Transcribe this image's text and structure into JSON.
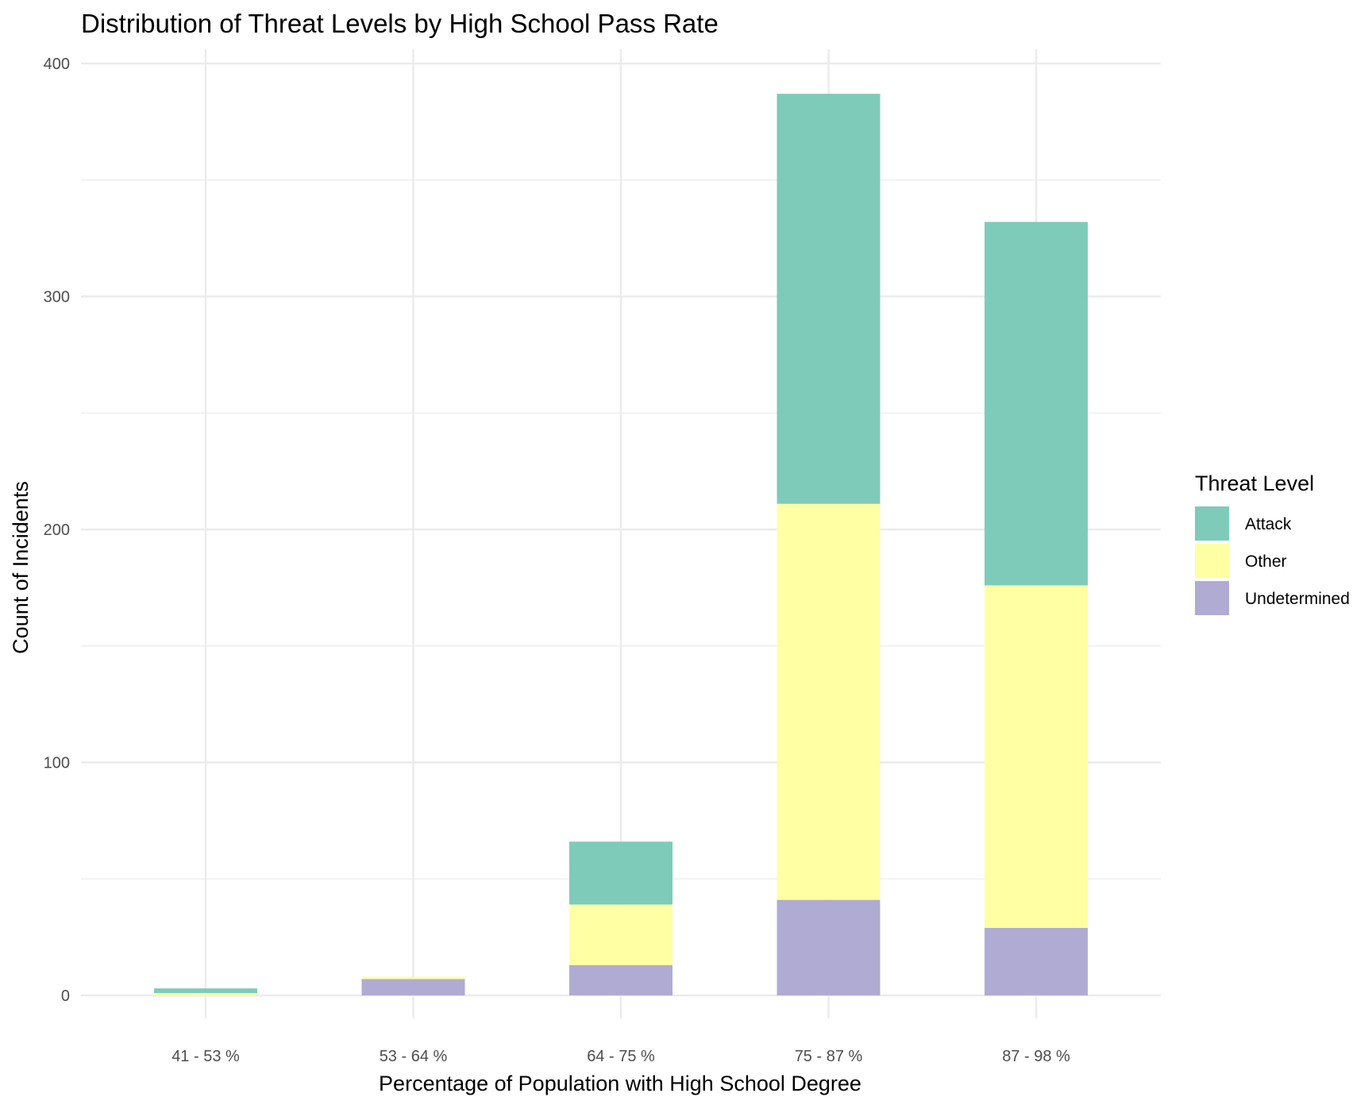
{
  "chart_data": {
    "type": "bar",
    "stacked": true,
    "title": "Distribution of Threat Levels by High School Pass Rate",
    "xlabel": "Percentage of Population with High School Degree",
    "ylabel": "Count of Incidents",
    "ylim": [
      0,
      400
    ],
    "yticks": [
      0,
      100,
      200,
      300,
      400
    ],
    "grid": true,
    "legend": {
      "title": "Threat Level",
      "position": "right"
    },
    "categories": [
      "41 - 53 %",
      "53 - 64 %",
      "64 - 75 %",
      "75 - 87 %",
      "87 - 98 %"
    ],
    "series": [
      {
        "name": "Undetermined",
        "color": "#b0abd3",
        "values": [
          0,
          7,
          13,
          41,
          29
        ]
      },
      {
        "name": "Other",
        "color": "#ffffa3",
        "values": [
          1,
          1,
          26,
          170,
          147
        ]
      },
      {
        "name": "Attack",
        "color": "#7ecbb9",
        "values": [
          2,
          0,
          27,
          176,
          156
        ]
      }
    ],
    "legend_order": [
      "Attack",
      "Other",
      "Undetermined"
    ]
  }
}
